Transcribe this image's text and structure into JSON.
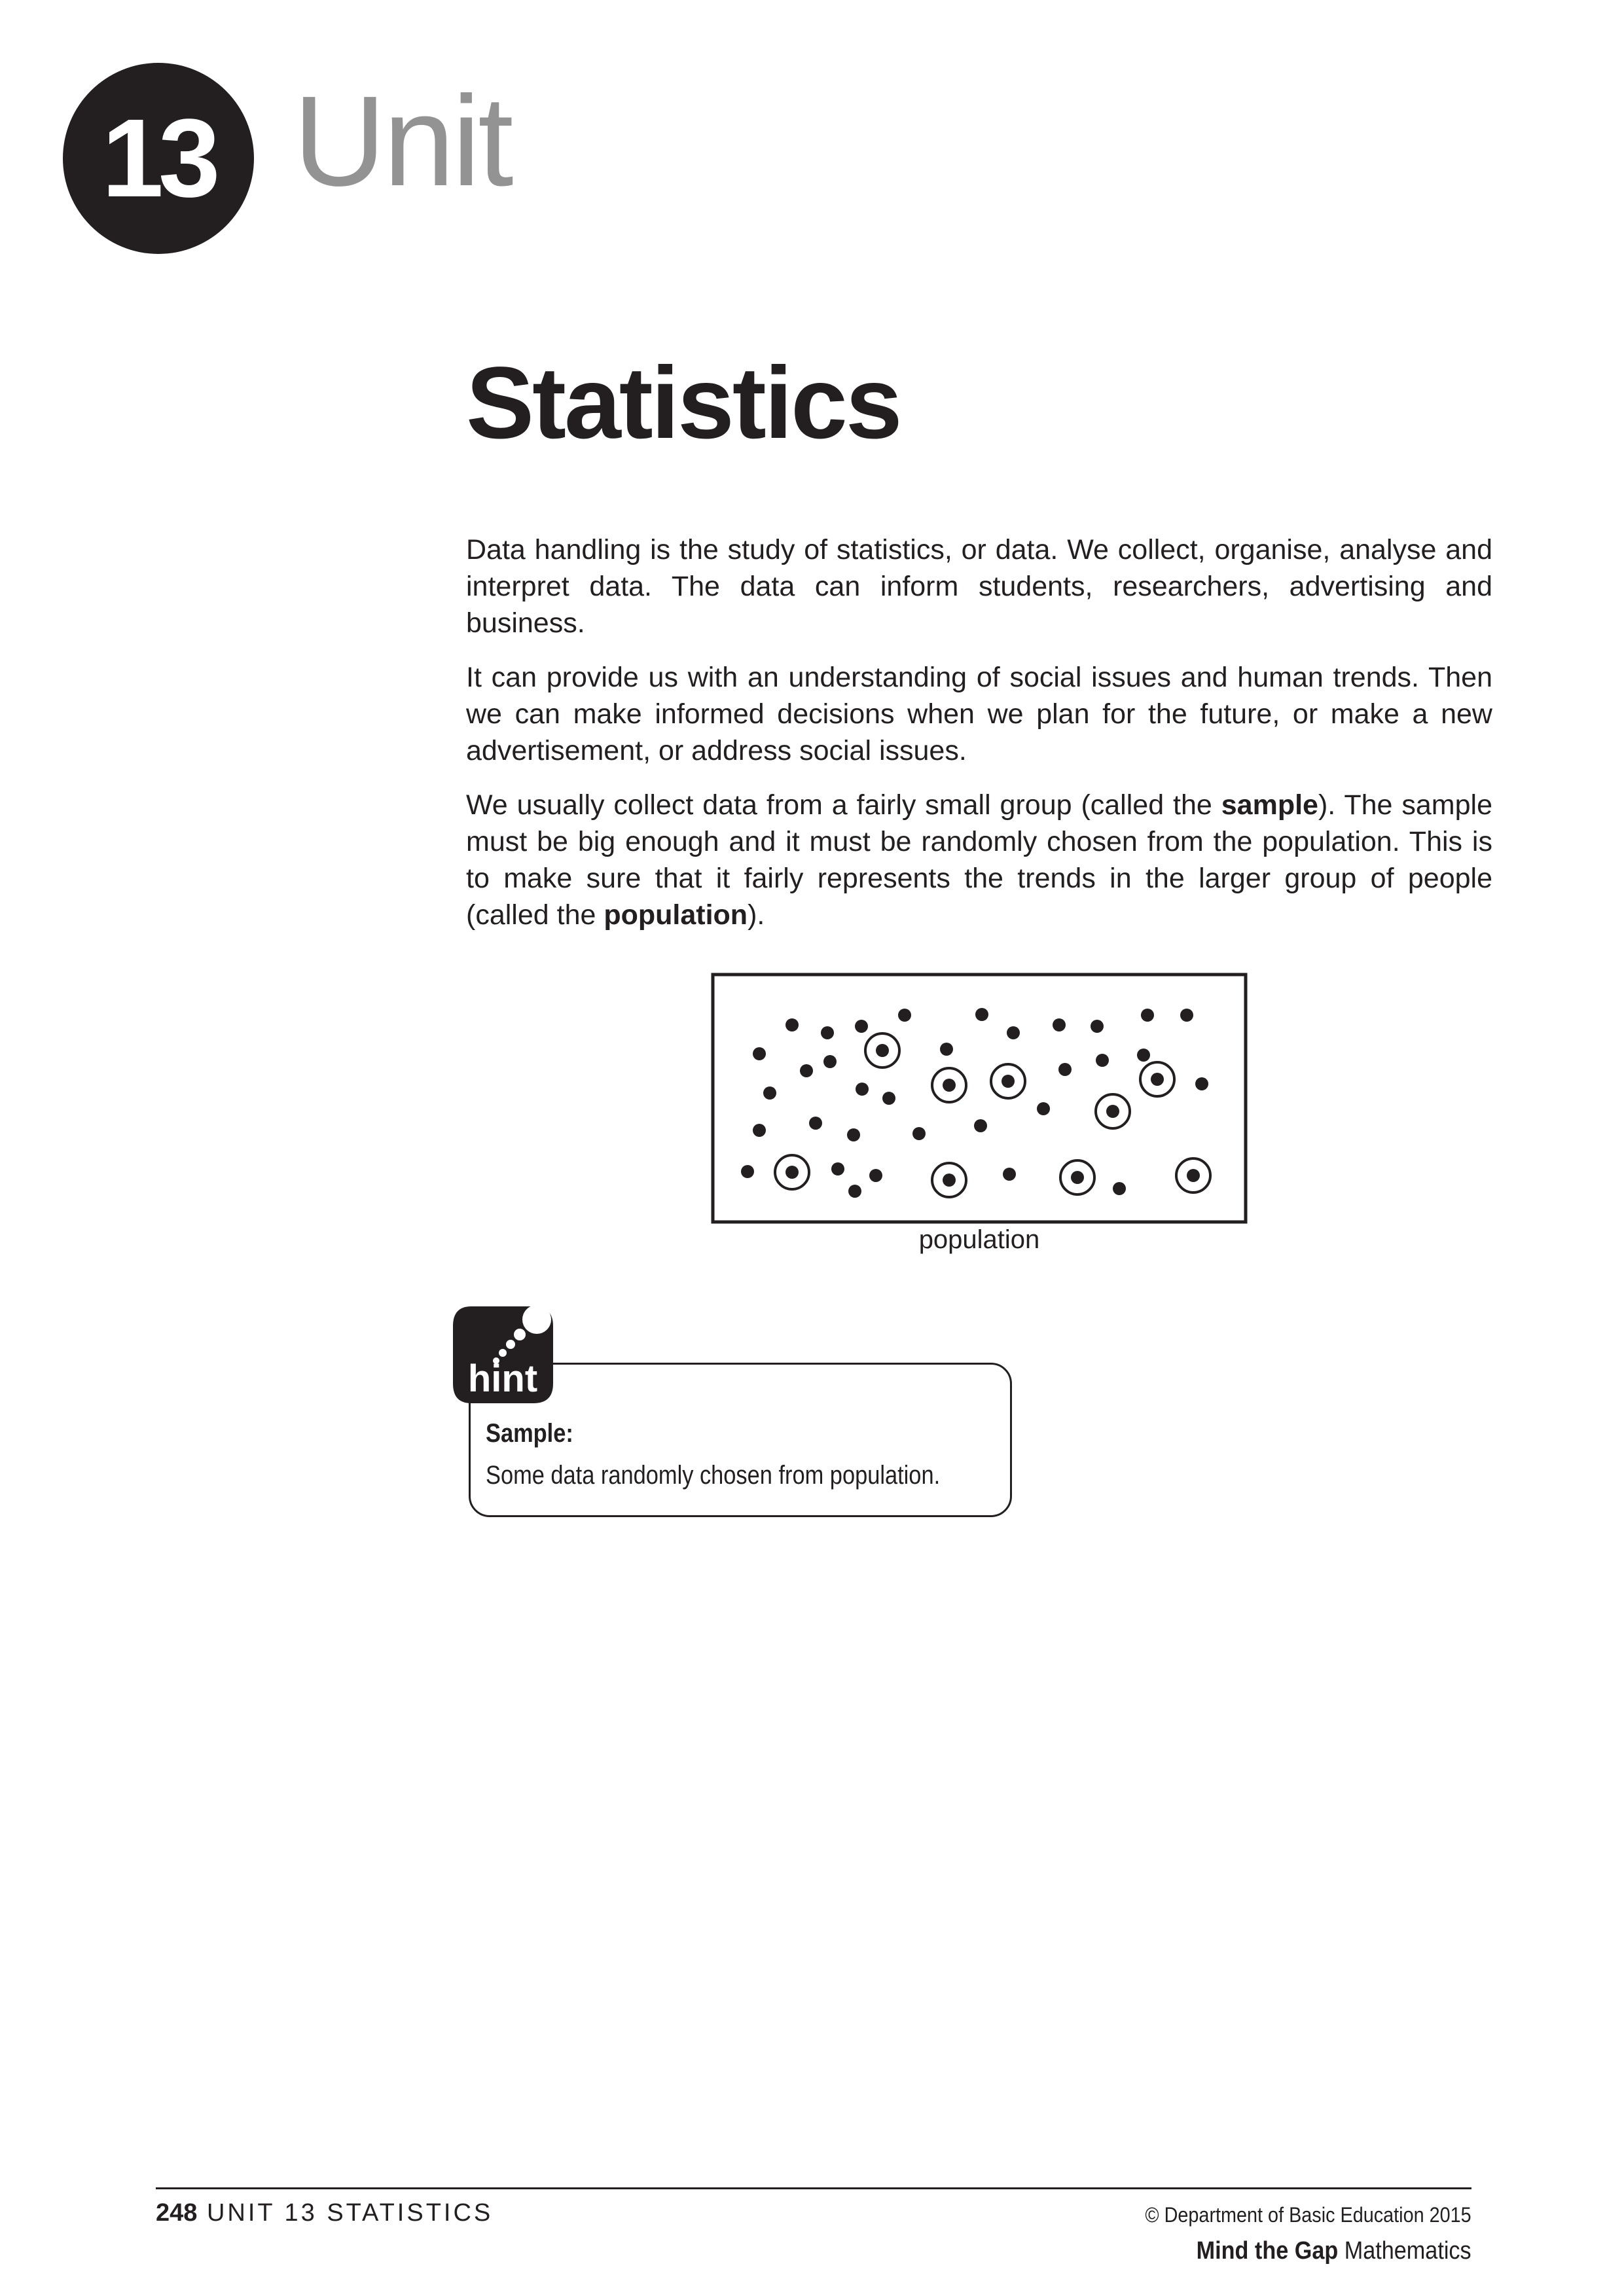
{
  "header": {
    "unit_number": "13",
    "unit_word": "Unit"
  },
  "title": "Statistics",
  "paragraphs": {
    "p1": "Data handling is the study of statistics, or data.  We collect, organise, analyse and interpret data. The data can inform students, researchers, advertising and business.",
    "p2": "It can provide us with an understanding of social issues and human trends. Then we can make informed decisions when we plan for the future, or make a new advertisement, or address social issues.",
    "p3_before": "We usually collect data from a fairly small group (called the ",
    "p3_bold1": "sample",
    "p3_middle": "). The sample must be big enough and it must be randomly chosen from the population. This is to make sure that it fairly represents the trends in the larger group of people (called the ",
    "p3_bold2": "population",
    "p3_after": ")."
  },
  "figure": {
    "caption": "population"
  },
  "hint": {
    "icon_label": "hint",
    "heading": "Sample:",
    "text": "Some data randomly chosen from population."
  },
  "footer": {
    "page_number": "248",
    "section": "UNIT 13 STATISTICS",
    "copyright": "© Department of Basic Education 2015",
    "brand_bold": "Mind the Gap",
    "brand_rest": "Mathematics"
  },
  "colors": {
    "ink": "#231f20",
    "unit_grey": "#939393"
  }
}
